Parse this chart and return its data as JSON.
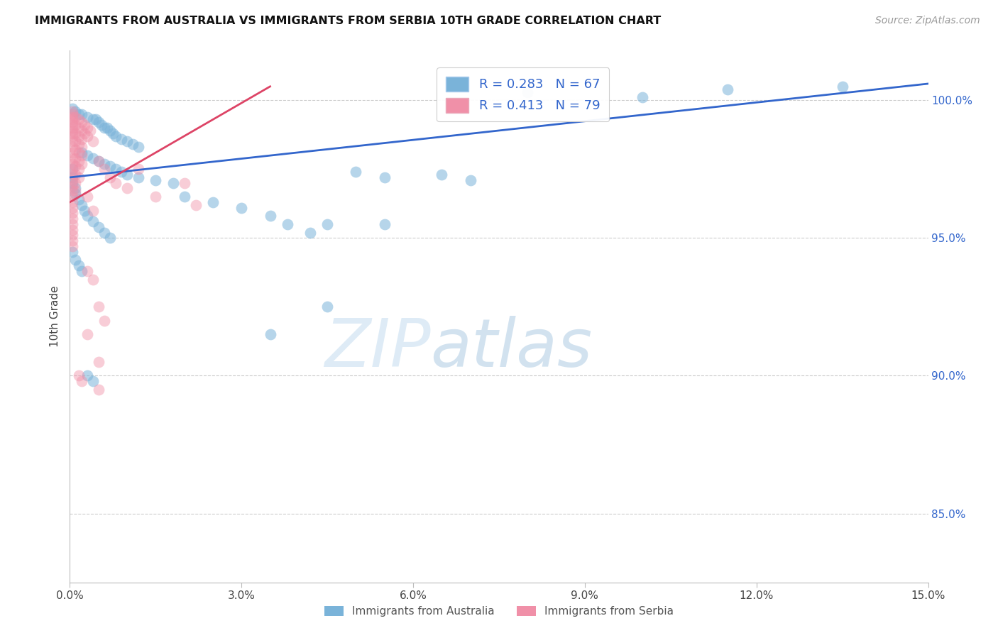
{
  "title": "IMMIGRANTS FROM AUSTRALIA VS IMMIGRANTS FROM SERBIA 10TH GRADE CORRELATION CHART",
  "source": "Source: ZipAtlas.com",
  "ylabel": "10th Grade",
  "xmin": 0.0,
  "xmax": 15.0,
  "ymin": 82.5,
  "ymax": 101.8,
  "y_ticks": [
    85.0,
    90.0,
    95.0,
    100.0
  ],
  "y_tick_labels": [
    "85.0%",
    "90.0%",
    "95.0%",
    "100.0%"
  ],
  "watermark_zip": "ZIP",
  "watermark_atlas": "atlas",
  "legend_label_australia": "Immigrants from Australia",
  "legend_label_serbia": "Immigrants from Serbia",
  "color_australia": "#7ab3d9",
  "color_serbia": "#f090a8",
  "line_color_australia": "#3366cc",
  "line_color_serbia": "#dd4466",
  "aus_line_x0": 0.0,
  "aus_line_y0": 97.2,
  "aus_line_x1": 15.0,
  "aus_line_y1": 100.6,
  "ser_line_x0": 0.0,
  "ser_line_y0": 96.3,
  "ser_line_x1": 3.5,
  "ser_line_y1": 100.5,
  "australia_points": [
    [
      0.05,
      99.7
    ],
    [
      0.1,
      99.6
    ],
    [
      0.15,
      99.5
    ],
    [
      0.2,
      99.5
    ],
    [
      0.3,
      99.4
    ],
    [
      0.4,
      99.3
    ],
    [
      0.45,
      99.3
    ],
    [
      0.5,
      99.2
    ],
    [
      0.55,
      99.1
    ],
    [
      0.6,
      99.0
    ],
    [
      0.65,
      99.0
    ],
    [
      0.7,
      98.9
    ],
    [
      0.75,
      98.8
    ],
    [
      0.8,
      98.7
    ],
    [
      0.9,
      98.6
    ],
    [
      1.0,
      98.5
    ],
    [
      1.1,
      98.4
    ],
    [
      1.2,
      98.3
    ],
    [
      0.2,
      98.1
    ],
    [
      0.3,
      98.0
    ],
    [
      0.4,
      97.9
    ],
    [
      0.5,
      97.8
    ],
    [
      0.6,
      97.7
    ],
    [
      0.7,
      97.6
    ],
    [
      0.8,
      97.5
    ],
    [
      0.9,
      97.4
    ],
    [
      1.0,
      97.3
    ],
    [
      1.2,
      97.2
    ],
    [
      1.5,
      97.1
    ],
    [
      1.8,
      97.0
    ],
    [
      0.05,
      97.5
    ],
    [
      0.05,
      97.2
    ],
    [
      0.05,
      97.0
    ],
    [
      0.1,
      96.8
    ],
    [
      0.1,
      96.6
    ],
    [
      0.15,
      96.4
    ],
    [
      0.2,
      96.2
    ],
    [
      0.25,
      96.0
    ],
    [
      0.3,
      95.8
    ],
    [
      0.4,
      95.6
    ],
    [
      0.5,
      95.4
    ],
    [
      0.6,
      95.2
    ],
    [
      0.7,
      95.0
    ],
    [
      2.0,
      96.5
    ],
    [
      2.5,
      96.3
    ],
    [
      3.0,
      96.1
    ],
    [
      3.5,
      95.8
    ],
    [
      4.5,
      95.5
    ],
    [
      0.05,
      94.5
    ],
    [
      0.1,
      94.2
    ],
    [
      0.15,
      94.0
    ],
    [
      0.2,
      93.8
    ],
    [
      3.8,
      95.5
    ],
    [
      4.2,
      95.2
    ],
    [
      5.0,
      97.4
    ],
    [
      5.5,
      97.2
    ],
    [
      6.5,
      97.3
    ],
    [
      7.0,
      97.1
    ],
    [
      8.0,
      100.3
    ],
    [
      10.0,
      100.1
    ],
    [
      11.5,
      100.4
    ],
    [
      13.5,
      100.5
    ],
    [
      3.5,
      91.5
    ],
    [
      4.5,
      92.5
    ],
    [
      5.5,
      95.5
    ],
    [
      0.3,
      90.0
    ],
    [
      0.4,
      89.8
    ]
  ],
  "serbia_points": [
    [
      0.05,
      99.6
    ],
    [
      0.05,
      99.5
    ],
    [
      0.05,
      99.4
    ],
    [
      0.05,
      99.3
    ],
    [
      0.05,
      99.2
    ],
    [
      0.05,
      99.1
    ],
    [
      0.05,
      99.0
    ],
    [
      0.05,
      98.9
    ],
    [
      0.05,
      98.8
    ],
    [
      0.05,
      98.7
    ],
    [
      0.05,
      98.5
    ],
    [
      0.05,
      98.3
    ],
    [
      0.05,
      98.1
    ],
    [
      0.05,
      97.9
    ],
    [
      0.05,
      97.7
    ],
    [
      0.05,
      97.5
    ],
    [
      0.05,
      97.3
    ],
    [
      0.05,
      97.1
    ],
    [
      0.05,
      96.9
    ],
    [
      0.05,
      96.7
    ],
    [
      0.05,
      96.5
    ],
    [
      0.05,
      96.3
    ],
    [
      0.05,
      96.1
    ],
    [
      0.05,
      95.9
    ],
    [
      0.05,
      95.7
    ],
    [
      0.05,
      95.5
    ],
    [
      0.05,
      95.3
    ],
    [
      0.05,
      95.1
    ],
    [
      0.05,
      94.9
    ],
    [
      0.05,
      94.7
    ],
    [
      0.1,
      99.4
    ],
    [
      0.1,
      99.1
    ],
    [
      0.1,
      98.8
    ],
    [
      0.1,
      98.5
    ],
    [
      0.1,
      98.2
    ],
    [
      0.1,
      97.9
    ],
    [
      0.1,
      97.6
    ],
    [
      0.1,
      97.3
    ],
    [
      0.1,
      97.0
    ],
    [
      0.1,
      96.7
    ],
    [
      0.15,
      99.3
    ],
    [
      0.15,
      99.0
    ],
    [
      0.15,
      98.7
    ],
    [
      0.15,
      98.4
    ],
    [
      0.15,
      98.1
    ],
    [
      0.15,
      97.8
    ],
    [
      0.15,
      97.5
    ],
    [
      0.15,
      97.2
    ],
    [
      0.2,
      99.2
    ],
    [
      0.2,
      98.9
    ],
    [
      0.2,
      98.6
    ],
    [
      0.2,
      98.3
    ],
    [
      0.2,
      98.0
    ],
    [
      0.2,
      97.7
    ],
    [
      0.25,
      99.1
    ],
    [
      0.25,
      98.8
    ],
    [
      0.3,
      99.0
    ],
    [
      0.3,
      98.7
    ],
    [
      0.35,
      98.9
    ],
    [
      0.4,
      98.5
    ],
    [
      0.5,
      97.8
    ],
    [
      0.6,
      97.5
    ],
    [
      0.7,
      97.2
    ],
    [
      0.8,
      97.0
    ],
    [
      1.0,
      96.8
    ],
    [
      1.2,
      97.5
    ],
    [
      1.5,
      96.5
    ],
    [
      2.0,
      97.0
    ],
    [
      2.2,
      96.2
    ],
    [
      0.3,
      93.8
    ],
    [
      0.4,
      93.5
    ],
    [
      0.5,
      92.5
    ],
    [
      0.6,
      92.0
    ],
    [
      0.3,
      91.5
    ],
    [
      0.5,
      90.5
    ],
    [
      0.15,
      90.0
    ],
    [
      0.2,
      89.8
    ],
    [
      0.5,
      89.5
    ],
    [
      0.3,
      96.5
    ],
    [
      0.4,
      96.0
    ]
  ]
}
